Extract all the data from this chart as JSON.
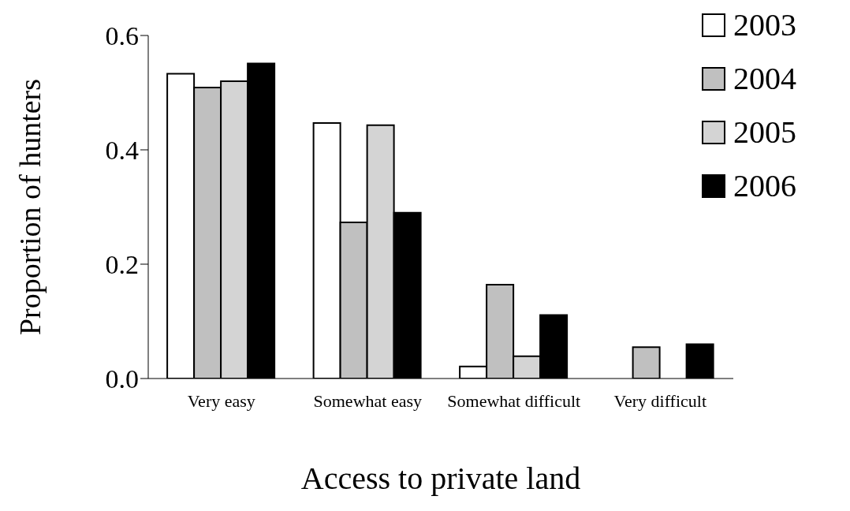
{
  "chart_data": {
    "type": "bar",
    "xlabel": "Access to private land",
    "ylabel": "Proportion of hunters",
    "categories": [
      "Very easy",
      "Somewhat easy",
      "Somewhat difficult",
      "Very difficult"
    ],
    "series": [
      {
        "name": "2003",
        "color": "#ffffff",
        "values": [
          0.533,
          0.447,
          0.021,
          0
        ]
      },
      {
        "name": "2004",
        "color": "#c0c0c0",
        "values": [
          0.509,
          0.273,
          0.164,
          0.055
        ]
      },
      {
        "name": "2005",
        "color": "#d4d4d4",
        "values": [
          0.52,
          0.443,
          0.039,
          0
        ]
      },
      {
        "name": "2006",
        "color": "#000000",
        "values": [
          0.551,
          0.29,
          0.111,
          0.06
        ]
      }
    ],
    "ylim": [
      0,
      0.6
    ],
    "yticks": [
      {
        "value": 0,
        "label": "0.0"
      },
      {
        "value": 0.2,
        "label": "0.2"
      },
      {
        "value": 0.4,
        "label": "0.4"
      },
      {
        "value": 0.6,
        "label": "0.6"
      }
    ],
    "grid": false,
    "legend": "top right"
  }
}
